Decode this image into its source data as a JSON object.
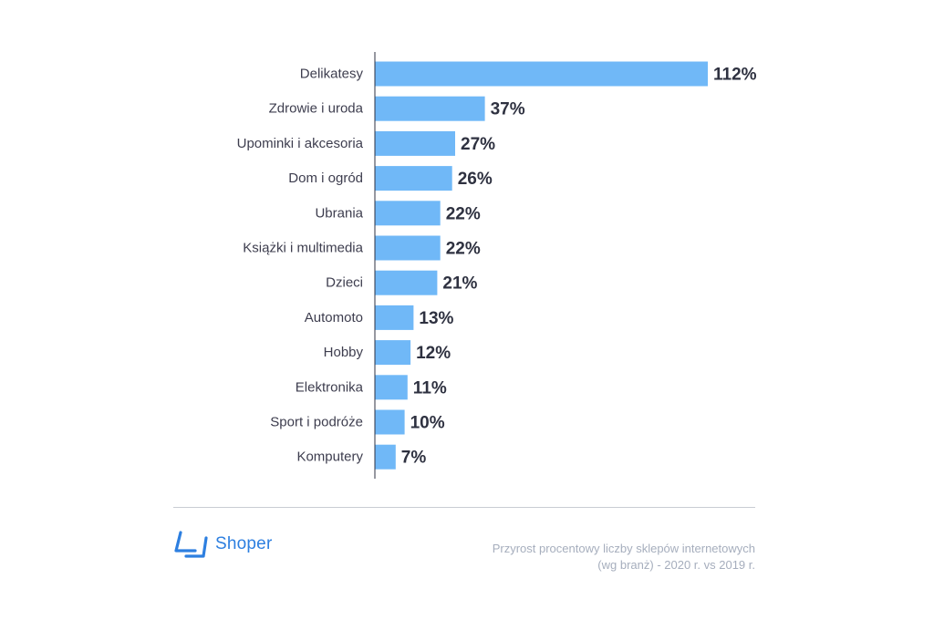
{
  "chart_data": {
    "type": "bar",
    "orientation": "horizontal",
    "categories": [
      "Delikatesy",
      "Zdrowie i uroda",
      "Upominki i akcesoria",
      "Dom i ogród",
      "Ubrania",
      "Książki i multimedia",
      "Dzieci",
      "Automoto",
      "Hobby",
      "Elektronika",
      "Sport i podróże",
      "Komputery"
    ],
    "values": [
      112,
      37,
      27,
      26,
      22,
      22,
      21,
      13,
      12,
      11,
      10,
      7
    ],
    "value_labels": [
      "112%",
      "37%",
      "27%",
      "26%",
      "22%",
      "22%",
      "21%",
      "13%",
      "12%",
      "11%",
      "10%",
      "7%"
    ],
    "unit": "%",
    "xlim": [
      0,
      112
    ],
    "grid": false,
    "legend": "none",
    "bar_color": "#70b8f7"
  },
  "brand": {
    "name": "Shoper",
    "color": "#2d7fe0",
    "icon": "shoper-logo-icon"
  },
  "caption": {
    "line1": "Przyrost procentowy liczby sklepów internetowych",
    "line2": "(wg branż) - 2020 r. vs 2019 r."
  }
}
